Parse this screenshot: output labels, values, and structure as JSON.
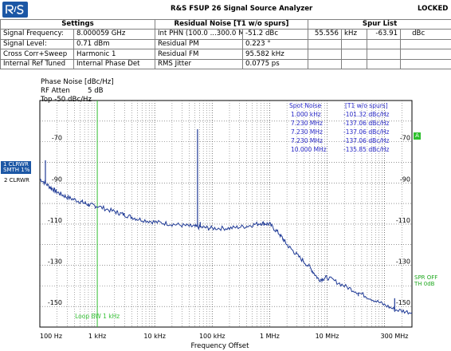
{
  "header": {
    "title": "R&S FSUP 26 Signal Source Analyzer",
    "status": "LOCKED",
    "col_settings": "Settings",
    "col_residual": "Residual Noise [T1 w/o spurs]",
    "col_spur": "Spur List"
  },
  "rows": [
    {
      "label": "Signal Frequency:",
      "value": "8.000059 GHz",
      "rlabel": "Int PHN (100.0 ...300.0 M)",
      "rvalue": "-51.2 dBc",
      "s1": "55.556",
      "s2": "kHz",
      "s3": "-63.91",
      "s4": "dBc"
    },
    {
      "label": "Signal Level:",
      "value": "0.71 dBm",
      "rlabel": "Residual PM",
      "rvalue": "0.223 °",
      "s1": "",
      "s2": "",
      "s3": "",
      "s4": ""
    },
    {
      "label": "Cross Corr+Sweep",
      "value": "Harmonic 1",
      "rlabel": "Residual FM",
      "rvalue": "95.582 kHz",
      "s1": "",
      "s2": "",
      "s3": "",
      "s4": ""
    },
    {
      "label": "Internal Ref Tuned",
      "value": "Internal Phase Det",
      "rlabel": "RMS Jitter",
      "rvalue": "0.0775 ps",
      "s1": "",
      "s2": "",
      "s3": "",
      "s4": ""
    }
  ],
  "plot_info": {
    "line1": "Phase Noise [dBc/Hz]",
    "line2": "RF Atten",
    "line2_value": "5 dB",
    "line3": "Top -50 dBc/Hz"
  },
  "side_labels": {
    "trace1_a": "1 CLRWR",
    "trace1_b": "SMTH 1%",
    "trace2": "2 CLRWR",
    "marker_a": "A",
    "spr_off": "SPR OFF",
    "th": "TH 0dB"
  },
  "spot_noise": {
    "header_left": "Spot Noise",
    "header_right": "[T1 w/o spurs]",
    "entries": [
      {
        "offset": "1.000 kHz",
        "value": "-101.32 dBc/Hz"
      },
      {
        "offset": "7.230 MHz",
        "value": "-137.06 dBc/Hz"
      },
      {
        "offset": "7.230 MHz",
        "value": "-137.06 dBc/Hz"
      },
      {
        "offset": "7.230 MHz",
        "value": "-137.06 dBc/Hz"
      },
      {
        "offset": "10.000 MHz",
        "value": "-135.85 dBc/Hz"
      }
    ]
  },
  "loop_bw_label": "Loop BW 1 kHz",
  "colors": {
    "trace": "#1f3a96",
    "loop": "#35c035",
    "text_blue": "#2828c8",
    "side_bg": "#1c57a5",
    "grid": "#555555"
  },
  "chart_data": {
    "type": "line",
    "xlabel": "Frequency Offset",
    "ylabel": "Phase Noise [dBc/Hz]",
    "x_scale": "log",
    "xlim_hz": [
      100,
      300000000
    ],
    "ylim": [
      -160,
      -50
    ],
    "x_ticks": [
      {
        "label": "100 Hz",
        "value": 100
      },
      {
        "label": "1 kHz",
        "value": 1000
      },
      {
        "label": "10 kHz",
        "value": 10000
      },
      {
        "label": "100 kHz",
        "value": 100000
      },
      {
        "label": "1 MHz",
        "value": 1000000
      },
      {
        "label": "10 MHz",
        "value": 10000000
      },
      {
        "label": "300 MHz",
        "value": 300000000
      }
    ],
    "y_ticks": [
      -70,
      -90,
      -110,
      -130,
      -150
    ],
    "loop_bw_hz": 1000,
    "series": [
      {
        "points": [
          [
            100,
            -88
          ],
          [
            150,
            -92
          ],
          [
            200,
            -94.5
          ],
          [
            300,
            -97
          ],
          [
            500,
            -99
          ],
          [
            700,
            -100.5
          ],
          [
            1000,
            -101.3
          ],
          [
            2000,
            -104
          ],
          [
            3000,
            -105.5
          ],
          [
            5000,
            -107.5
          ],
          [
            10000,
            -109
          ],
          [
            20000,
            -110
          ],
          [
            40000,
            -111
          ],
          [
            60000,
            -111.5
          ],
          [
            100000,
            -112
          ],
          [
            200000,
            -112
          ],
          [
            400000,
            -111
          ],
          [
            700000,
            -109.5
          ],
          [
            1000000,
            -110
          ],
          [
            1500000,
            -115
          ],
          [
            2000000,
            -120
          ],
          [
            3000000,
            -125
          ],
          [
            5000000,
            -131
          ],
          [
            7230000,
            -137.06
          ],
          [
            10000000,
            -135.85
          ],
          [
            20000000,
            -140
          ],
          [
            40000000,
            -144
          ],
          [
            80000000,
            -148
          ],
          [
            150000000,
            -151.5
          ],
          [
            300000000,
            -153
          ]
        ],
        "spurs": [
          [
            125,
            -79
          ],
          [
            55556,
            -63.91
          ],
          [
            62000,
            -109
          ],
          [
            35000000,
            -145
          ],
          [
            150000000,
            -146
          ]
        ]
      }
    ]
  }
}
